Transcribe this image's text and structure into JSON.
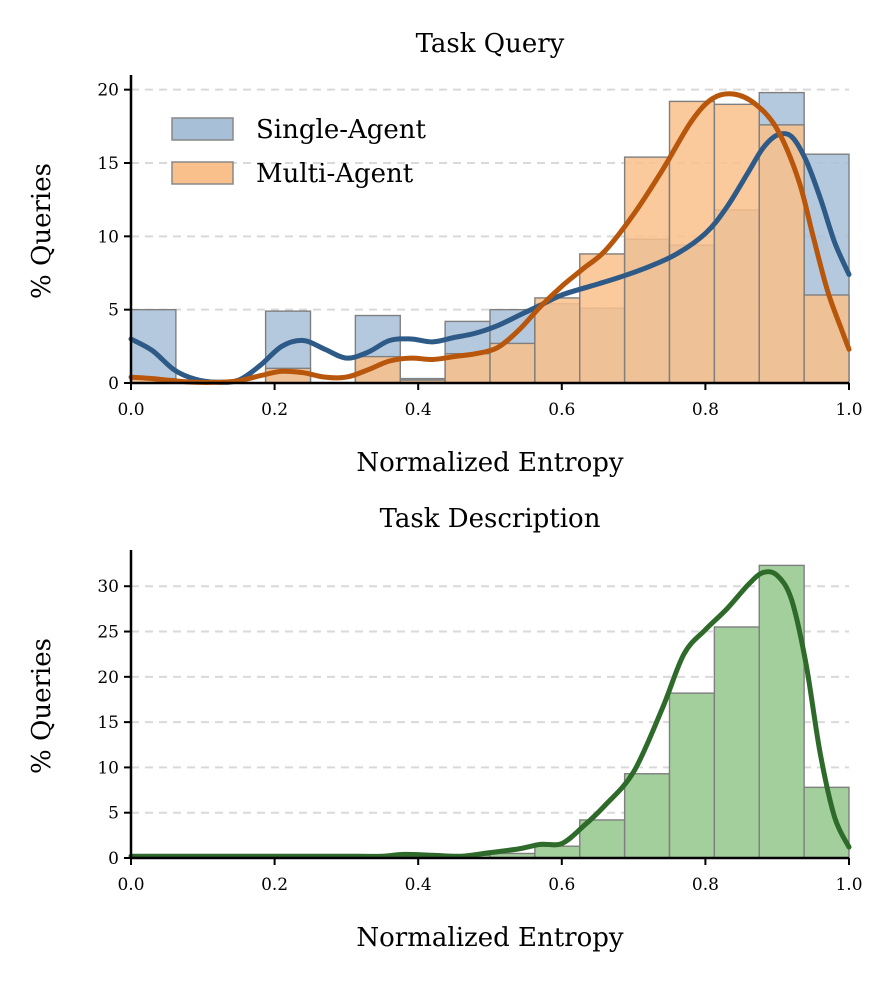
{
  "chart_data": [
    {
      "type": "bar",
      "title": "Task Query",
      "xlabel": "Normalized Entropy",
      "ylabel": "% Queries",
      "xlim": [
        0,
        1
      ],
      "ylim": [
        0,
        21
      ],
      "xticks": [
        "0.0",
        "0.2",
        "0.4",
        "0.6",
        "0.8",
        "1.0"
      ],
      "yticks": [
        "0",
        "5",
        "10",
        "15",
        "20"
      ],
      "grid": "y-dashed",
      "legend_position": "upper-left",
      "bin_edges": [
        0,
        0.0625,
        0.125,
        0.1875,
        0.25,
        0.3125,
        0.375,
        0.4375,
        0.5,
        0.5625,
        0.625,
        0.6875,
        0.75,
        0.8125,
        0.875,
        0.9375,
        1.0
      ],
      "series": [
        {
          "name": "Single-Agent",
          "color": "#a8bfd8",
          "line_color": "#2e5a87",
          "values": [
            5.0,
            0,
            0,
            4.9,
            0,
            4.6,
            0.3,
            4.2,
            5.0,
            5.4,
            5.1,
            9.8,
            9.4,
            11.8,
            19.8,
            15.6
          ],
          "kde": {
            "x": [
              0.0,
              0.03,
              0.06,
              0.09,
              0.12,
              0.15,
              0.18,
              0.21,
              0.24,
              0.27,
              0.3,
              0.33,
              0.36,
              0.39,
              0.42,
              0.45,
              0.48,
              0.51,
              0.54,
              0.57,
              0.6,
              0.64,
              0.68,
              0.72,
              0.76,
              0.8,
              0.83,
              0.86,
              0.88,
              0.9,
              0.92,
              0.94,
              0.96,
              0.98,
              1.0
            ],
            "y": [
              3.0,
              2.2,
              0.9,
              0.25,
              0.05,
              0.2,
              1.2,
              2.5,
              2.9,
              2.3,
              1.7,
              2.1,
              2.9,
              3.0,
              2.8,
              3.1,
              3.4,
              3.9,
              4.6,
              5.3,
              6.0,
              6.6,
              7.2,
              7.9,
              8.8,
              10.2,
              12.0,
              14.4,
              16.0,
              16.9,
              16.8,
              15.2,
              12.6,
              9.6,
              7.4
            ]
          }
        },
        {
          "name": "Multi-Agent",
          "color": "#f9c08b",
          "line_color": "#b8560c",
          "values": [
            0.3,
            0,
            0,
            1.0,
            0,
            1.8,
            0.2,
            2.0,
            2.7,
            5.8,
            8.8,
            15.4,
            19.2,
            19.0,
            17.6,
            6.0
          ],
          "kde": {
            "x": [
              0.0,
              0.03,
              0.06,
              0.09,
              0.12,
              0.15,
              0.18,
              0.21,
              0.24,
              0.27,
              0.3,
              0.33,
              0.36,
              0.39,
              0.42,
              0.45,
              0.48,
              0.51,
              0.54,
              0.57,
              0.6,
              0.63,
              0.66,
              0.7,
              0.74,
              0.78,
              0.81,
              0.84,
              0.87,
              0.9,
              0.93,
              0.95,
              0.97,
              0.99,
              1.0
            ],
            "y": [
              0.4,
              0.3,
              0.15,
              0.05,
              0.05,
              0.15,
              0.5,
              0.8,
              0.7,
              0.4,
              0.4,
              0.9,
              1.5,
              1.7,
              1.6,
              1.8,
              2.0,
              2.4,
              3.6,
              5.2,
              6.6,
              7.8,
              9.0,
              11.5,
              14.5,
              17.8,
              19.4,
              19.7,
              19.0,
              17.3,
              13.8,
              10.0,
              6.3,
              3.6,
              2.3
            ]
          }
        }
      ]
    },
    {
      "type": "bar",
      "title": "Task Description",
      "xlabel": "Normalized Entropy",
      "ylabel": "% Queries",
      "xlim": [
        0,
        1
      ],
      "ylim": [
        0,
        34
      ],
      "xticks": [
        "0.0",
        "0.2",
        "0.4",
        "0.6",
        "0.8",
        "1.0"
      ],
      "yticks": [
        "0",
        "5",
        "10",
        "15",
        "20",
        "25",
        "30"
      ],
      "grid": "y-dashed",
      "bin_edges": [
        0,
        0.0625,
        0.125,
        0.1875,
        0.25,
        0.3125,
        0.375,
        0.4375,
        0.5,
        0.5625,
        0.625,
        0.6875,
        0.75,
        0.8125,
        0.875,
        0.9375,
        1.0
      ],
      "series": [
        {
          "color": "#a3cf9c",
          "line_color": "#2e6b2a",
          "values": [
            0.2,
            0.1,
            0.1,
            0.2,
            0.2,
            0.2,
            0.2,
            0.3,
            0.5,
            1.3,
            4.2,
            9.3,
            18.2,
            25.5,
            32.3,
            7.8
          ],
          "kde": {
            "x": [
              0.0,
              0.05,
              0.1,
              0.15,
              0.2,
              0.25,
              0.3,
              0.35,
              0.38,
              0.42,
              0.46,
              0.5,
              0.54,
              0.57,
              0.6,
              0.63,
              0.66,
              0.7,
              0.74,
              0.77,
              0.8,
              0.83,
              0.86,
              0.88,
              0.9,
              0.92,
              0.94,
              0.96,
              0.98,
              1.0
            ],
            "y": [
              0.2,
              0.2,
              0.2,
              0.2,
              0.2,
              0.2,
              0.2,
              0.2,
              0.4,
              0.3,
              0.2,
              0.6,
              1.0,
              1.5,
              1.6,
              3.5,
              5.8,
              9.5,
              16.5,
              22.5,
              25.2,
              27.5,
              30.2,
              31.5,
              31.2,
              28.5,
              21.5,
              11.5,
              4.5,
              1.2
            ]
          }
        }
      ]
    }
  ]
}
